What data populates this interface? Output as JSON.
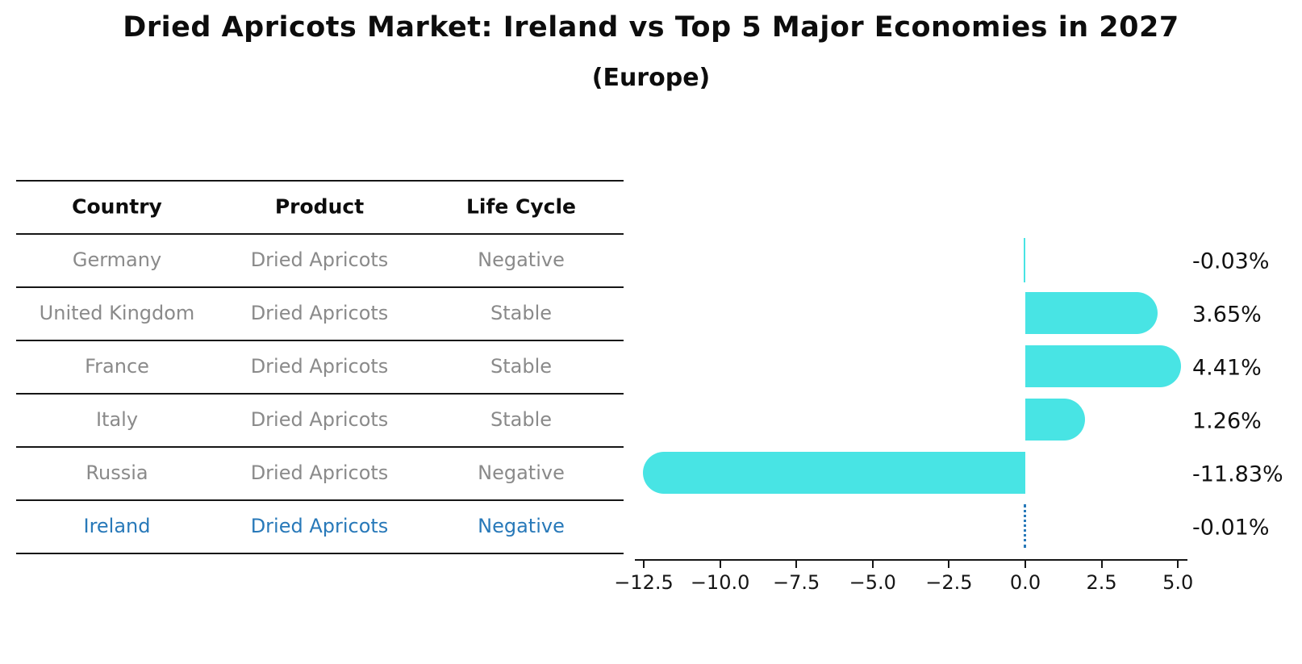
{
  "title": "Dried Apricots Market: Ireland vs Top 5 Major Economies in 2027",
  "subtitle": "(Europe)",
  "table": {
    "headers": [
      "Country",
      "Product",
      "Life Cycle"
    ],
    "rows": [
      {
        "country": "Germany",
        "product": "Dried Apricots",
        "life_cycle": "Negative",
        "highlighted": false
      },
      {
        "country": "United Kingdom",
        "product": "Dried Apricots",
        "life_cycle": "Stable",
        "highlighted": false
      },
      {
        "country": "France",
        "product": "Dried Apricots",
        "life_cycle": "Stable",
        "highlighted": false
      },
      {
        "country": "Italy",
        "product": "Dried Apricots",
        "life_cycle": "Stable",
        "highlighted": false
      },
      {
        "country": "Russia",
        "product": "Dried Apricots",
        "life_cycle": "Negative",
        "highlighted": false
      },
      {
        "country": "Ireland",
        "product": "Dried Apricots",
        "life_cycle": "Negative",
        "highlighted": true
      }
    ]
  },
  "chart_data": {
    "type": "bar",
    "orientation": "horizontal",
    "title": "Dried Apricots Market: Ireland vs Top 5 Major Economies in 2027",
    "subtitle": "(Europe)",
    "categories": [
      "Germany",
      "United Kingdom",
      "France",
      "Italy",
      "Russia",
      "Ireland"
    ],
    "values": [
      -0.03,
      3.65,
      4.41,
      1.26,
      -11.83,
      -0.01
    ],
    "value_labels": [
      "-0.03%",
      "3.65%",
      "4.41%",
      "1.26%",
      "-11.83%",
      "-0.01%"
    ],
    "highlighted_category": "Ireland",
    "x_tick_labels": [
      "−12.5",
      "−10.0",
      "−7.5",
      "−5.0",
      "−2.5",
      "0.0",
      "2.5",
      "5.0"
    ],
    "x_tick_values": [
      -12.5,
      -10.0,
      -7.5,
      -5.0,
      -2.5,
      0.0,
      2.5,
      5.0
    ],
    "xlim": [
      -12.8,
      5.3
    ],
    "grid": false,
    "legend": false
  },
  "colors": {
    "bar": "#48E4E4",
    "highlight_blue": "#2879B9",
    "table_text_gray": "#8A8A8A",
    "axis_black": "#161616"
  }
}
